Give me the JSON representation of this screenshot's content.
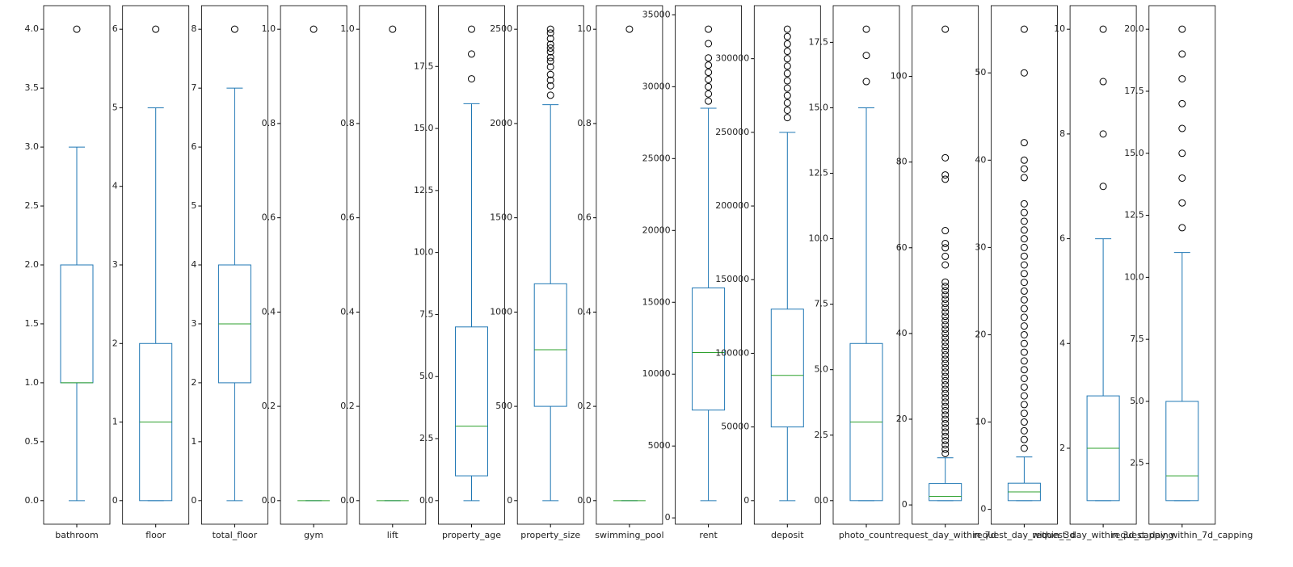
{
  "chart_data": [
    {
      "type": "box",
      "categories": [
        "bathroom"
      ],
      "color": "#1f77b4",
      "median_color": "#2ca02c",
      "whislo": [
        0
      ],
      "q1": [
        1
      ],
      "median": [
        1
      ],
      "q3": [
        2
      ],
      "whishi": [
        3
      ],
      "fliers": [
        [
          4
        ]
      ],
      "ylim": [
        -0.2,
        4.2
      ],
      "yticks": [
        {
          "value": 0,
          "label": "0.0"
        },
        0.5,
        {
          "value": 1,
          "label": "1.0"
        },
        1.5,
        {
          "value": 2,
          "label": "2.0"
        },
        2.5,
        {
          "value": 3,
          "label": "3.0"
        },
        3.5,
        {
          "value": 4,
          "label": "4.0"
        }
      ]
    },
    {
      "type": "box",
      "categories": [
        "floor"
      ],
      "color": "#1f77b4",
      "median_color": "#2ca02c",
      "whislo": [
        0
      ],
      "q1": [
        0
      ],
      "median": [
        1
      ],
      "q3": [
        2
      ],
      "whishi": [
        5
      ],
      "fliers": [
        [
          6
        ]
      ],
      "ylim": [
        -0.3,
        6.3
      ],
      "yticks": [
        0,
        1,
        2,
        3,
        4,
        5,
        6
      ]
    },
    {
      "type": "box",
      "categories": [
        "total_floor"
      ],
      "color": "#1f77b4",
      "median_color": "#2ca02c",
      "whislo": [
        0
      ],
      "q1": [
        2
      ],
      "median": [
        3
      ],
      "q3": [
        4
      ],
      "whishi": [
        7
      ],
      "fliers": [
        [
          8
        ]
      ],
      "ylim": [
        -0.4,
        8.4
      ],
      "yticks": [
        0,
        1,
        2,
        3,
        4,
        5,
        6,
        7,
        8
      ]
    },
    {
      "type": "box",
      "categories": [
        "gym"
      ],
      "color": "#1f77b4",
      "median_color": "#2ca02c",
      "whislo": [
        0
      ],
      "q1": [
        0
      ],
      "median": [
        0
      ],
      "q3": [
        0
      ],
      "whishi": [
        0
      ],
      "fliers": [
        [
          1
        ]
      ],
      "ylim": [
        -0.05,
        1.05
      ],
      "yticks": [
        {
          "value": 0,
          "label": "0.0"
        },
        0.2,
        0.4,
        0.6,
        0.8,
        {
          "value": 1,
          "label": "1.0"
        }
      ]
    },
    {
      "type": "box",
      "categories": [
        "lift"
      ],
      "color": "#1f77b4",
      "median_color": "#2ca02c",
      "whislo": [
        0
      ],
      "q1": [
        0
      ],
      "median": [
        0
      ],
      "q3": [
        0
      ],
      "whishi": [
        0
      ],
      "fliers": [
        [
          1
        ]
      ],
      "ylim": [
        -0.05,
        1.05
      ],
      "yticks": [
        {
          "value": 0,
          "label": "0.0"
        },
        0.2,
        0.4,
        0.6,
        0.8,
        {
          "value": 1,
          "label": "1.0"
        }
      ]
    },
    {
      "type": "box",
      "categories": [
        "property_age"
      ],
      "color": "#1f77b4",
      "median_color": "#2ca02c",
      "whislo": [
        0
      ],
      "q1": [
        1
      ],
      "median": [
        3
      ],
      "q3": [
        7
      ],
      "whishi": [
        16
      ],
      "fliers": [
        [
          17,
          18,
          19
        ]
      ],
      "ylim": [
        -0.95,
        19.95
      ],
      "yticks": [
        {
          "value": 0,
          "label": "0.0"
        },
        2.5,
        {
          "value": 5,
          "label": "5.0"
        },
        7.5,
        {
          "value": 10,
          "label": "10.0"
        },
        12.5,
        {
          "value": 15,
          "label": "15.0"
        },
        17.5
      ]
    },
    {
      "type": "box",
      "categories": [
        "property_size"
      ],
      "color": "#1f77b4",
      "median_color": "#2ca02c",
      "whislo": [
        0
      ],
      "q1": [
        500
      ],
      "median": [
        800
      ],
      "q3": [
        1150
      ],
      "whishi": [
        2100
      ],
      "fliers": [
        [
          2150,
          2200,
          2230,
          2260,
          2300,
          2330,
          2350,
          2380,
          2400,
          2420,
          2450,
          2480,
          2500
        ]
      ],
      "ylim": [
        -125,
        2625
      ],
      "yticks": [
        0,
        500,
        1000,
        1500,
        2000,
        2500
      ]
    },
    {
      "type": "box",
      "categories": [
        "swimming_pool"
      ],
      "color": "#1f77b4",
      "median_color": "#2ca02c",
      "whislo": [
        0
      ],
      "q1": [
        0
      ],
      "median": [
        0
      ],
      "q3": [
        0
      ],
      "whishi": [
        0
      ],
      "fliers": [
        [
          1
        ]
      ],
      "ylim": [
        -0.05,
        1.05
      ],
      "yticks": [
        {
          "value": 0,
          "label": "0.0"
        },
        0.2,
        0.4,
        0.6,
        0.8,
        {
          "value": 1,
          "label": "1.0"
        }
      ]
    },
    {
      "type": "box",
      "categories": [
        "rent"
      ],
      "color": "#1f77b4",
      "median_color": "#2ca02c",
      "whislo": [
        1200
      ],
      "q1": [
        7500
      ],
      "median": [
        11500
      ],
      "q3": [
        16000
      ],
      "whishi": [
        28500
      ],
      "fliers": [
        [
          29000,
          29500,
          30000,
          30500,
          31000,
          31500,
          32000,
          33000,
          34000
        ]
      ],
      "ylim": [
        -440,
        35640
      ],
      "yticks": [
        0,
        5000,
        10000,
        15000,
        20000,
        25000,
        30000,
        35000
      ]
    },
    {
      "type": "box",
      "categories": [
        "deposit"
      ],
      "color": "#1f77b4",
      "median_color": "#2ca02c",
      "whislo": [
        0
      ],
      "q1": [
        50000
      ],
      "median": [
        85000
      ],
      "q3": [
        130000
      ],
      "whishi": [
        250000
      ],
      "fliers": [
        [
          260000,
          265000,
          270000,
          275000,
          280000,
          285000,
          290000,
          295000,
          300000,
          305000,
          310000,
          315000,
          320000
        ]
      ],
      "ylim": [
        -16000,
        336000
      ],
      "yticks": [
        0,
        50000,
        100000,
        150000,
        200000,
        250000,
        300000
      ]
    },
    {
      "type": "box",
      "categories": [
        "photo_count"
      ],
      "color": "#1f77b4",
      "median_color": "#2ca02c",
      "whislo": [
        0
      ],
      "q1": [
        0
      ],
      "median": [
        3
      ],
      "q3": [
        6
      ],
      "whishi": [
        15
      ],
      "fliers": [
        [
          16,
          17,
          18
        ]
      ],
      "ylim": [
        -0.9,
        18.9
      ],
      "yticks": [
        {
          "value": 0,
          "label": "0.0"
        },
        2.5,
        {
          "value": 5,
          "label": "5.0"
        },
        7.5,
        {
          "value": 10,
          "label": "10.0"
        },
        12.5,
        {
          "value": 15,
          "label": "15.0"
        },
        17.5
      ]
    },
    {
      "type": "box",
      "categories": [
        "request_day_within_7d"
      ],
      "color": "#1f77b4",
      "median_color": "#2ca02c",
      "whislo": [
        1
      ],
      "q1": [
        1
      ],
      "median": [
        2
      ],
      "q3": [
        5
      ],
      "whishi": [
        11
      ],
      "fliers": [
        [
          12,
          13,
          14,
          15,
          16,
          17,
          18,
          19,
          20,
          21,
          22,
          23,
          24,
          25,
          26,
          27,
          28,
          29,
          30,
          31,
          32,
          33,
          34,
          35,
          36,
          37,
          38,
          39,
          40,
          41,
          42,
          43,
          44,
          45,
          46,
          47,
          48,
          49,
          50,
          51,
          52,
          56,
          58,
          60,
          61,
          64,
          76,
          77,
          81,
          111
        ]
      ],
      "ylim": [
        -4.5,
        116.5
      ],
      "yticks": [
        0,
        20,
        40,
        60,
        80,
        100
      ]
    },
    {
      "type": "box",
      "categories": [
        "request_day_within_3d"
      ],
      "color": "#1f77b4",
      "median_color": "#2ca02c",
      "whislo": [
        1
      ],
      "q1": [
        1
      ],
      "median": [
        2
      ],
      "q3": [
        3
      ],
      "whishi": [
        6
      ],
      "fliers": [
        [
          7,
          8,
          9,
          10,
          11,
          12,
          13,
          14,
          15,
          16,
          17,
          18,
          19,
          20,
          21,
          22,
          23,
          24,
          25,
          26,
          27,
          28,
          29,
          30,
          31,
          32,
          33,
          34,
          35,
          38,
          39,
          40,
          42,
          50,
          55
        ]
      ],
      "ylim": [
        -1.7,
        57.7
      ],
      "yticks": [
        0,
        10,
        20,
        30,
        40,
        50
      ]
    },
    {
      "type": "box",
      "categories": [
        "request_day_within_3d_capping"
      ],
      "color": "#1f77b4",
      "median_color": "#2ca02c",
      "whislo": [
        1
      ],
      "q1": [
        1
      ],
      "median": [
        2
      ],
      "q3": [
        3
      ],
      "whishi": [
        6
      ],
      "fliers": [
        [
          7,
          8,
          9,
          10
        ]
      ],
      "ylim": [
        0.55,
        10.45
      ],
      "yticks": [
        2,
        4,
        6,
        8,
        10
      ]
    },
    {
      "type": "box",
      "categories": [
        "request_day_within_7d_capping"
      ],
      "color": "#1f77b4",
      "median_color": "#2ca02c",
      "whislo": [
        1
      ],
      "q1": [
        1
      ],
      "median": [
        2
      ],
      "q3": [
        5
      ],
      "whishi": [
        11
      ],
      "fliers": [
        [
          12,
          13,
          14,
          15,
          16,
          17,
          18,
          19,
          20
        ]
      ],
      "ylim": [
        0.05,
        20.95
      ],
      "yticks": [
        2.5,
        {
          "value": 5,
          "label": "5.0"
        },
        7.5,
        {
          "value": 10,
          "label": "10.0"
        },
        12.5,
        {
          "value": 15,
          "label": "15.0"
        },
        17.5,
        {
          "value": 20,
          "label": "20.0"
        }
      ]
    }
  ]
}
